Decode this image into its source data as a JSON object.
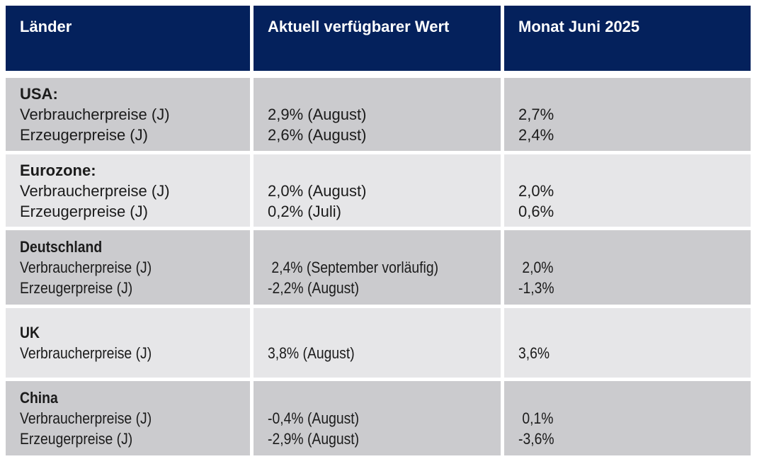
{
  "colors": {
    "page_bg": "#ffffff",
    "header_bg": "#04215c",
    "header_text": "#ffffff",
    "row_dark": "#cbcbce",
    "row_light": "#e6e6e8",
    "body_text": "#1b1b1b"
  },
  "table": {
    "header": {
      "country_col": "Länder",
      "current_col": "Aktuell verfügbarer Wert",
      "june_col": "Monat Juni 2025"
    },
    "rows": [
      {
        "name": "USA:",
        "label1": "Verbraucherpreise (J)",
        "label2": "Erzeugerpreise (J)",
        "current1": "2,9% (August)",
        "current2": "2,6% (August)",
        "june1": "2,7%",
        "june2": "2,4%"
      },
      {
        "name": "Eurozone:",
        "label1": "Verbraucherpreise (J)",
        "label2": "Erzeugerpreise (J)",
        "current1": "2,0% (August)",
        "current2": "0,2% (Juli)",
        "june1": "2,0%",
        "june2": "0,6%"
      },
      {
        "name": "Deutschland",
        "label1": "Verbraucherpreise (J)",
        "label2": "Erzeugerpreise (J)",
        "current1": " 2,4% (September vorläufig)",
        "current2": "-2,2% (August)",
        "june1": " 2,0%",
        "june2": "-1,3%"
      },
      {
        "name": "UK",
        "label1": "Verbraucherpreise (J)",
        "current1": "3,8% (August)",
        "june1": "3,6%"
      },
      {
        "name": "China",
        "label1": "Verbraucherpreise (J)",
        "label2": "Erzeugerpreise (J)",
        "current1": "-0,4% (August)",
        "current2": "-2,9% (August)",
        "june1": " 0,1%",
        "june2": "-3,6%"
      }
    ]
  }
}
